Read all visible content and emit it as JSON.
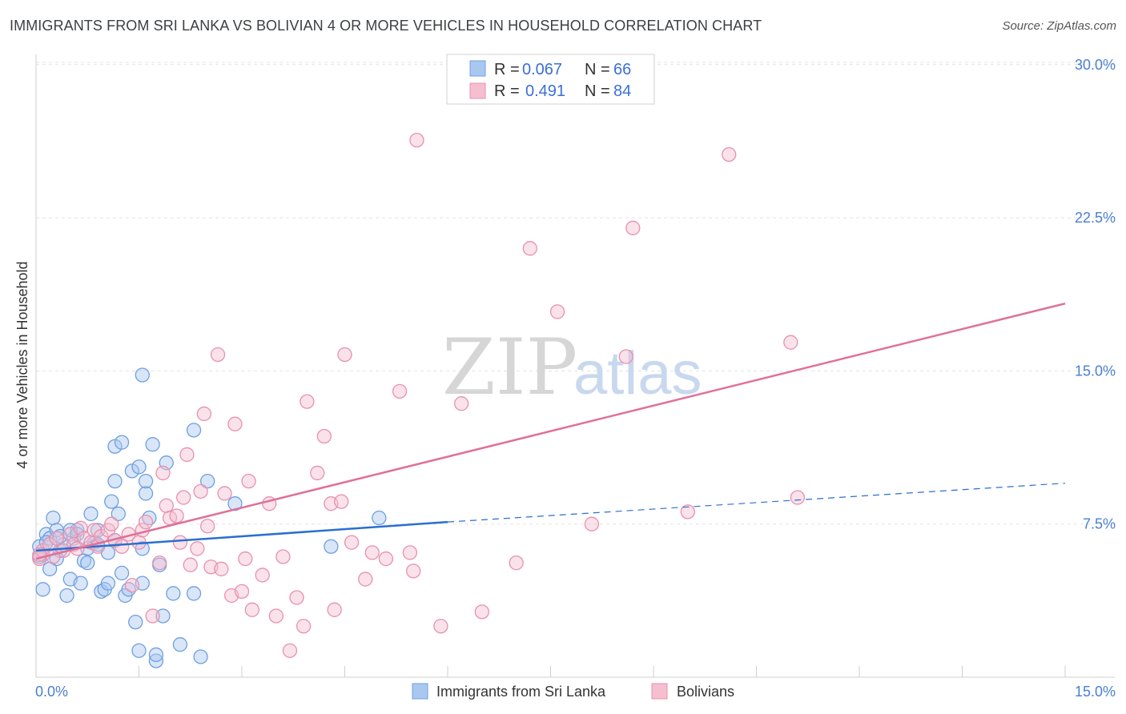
{
  "header": {
    "title": "IMMIGRANTS FROM SRI LANKA VS BOLIVIAN 4 OR MORE VEHICLES IN HOUSEHOLD CORRELATION CHART",
    "source": "Source: ZipAtlas.com"
  },
  "watermark": {
    "zip": "ZIP",
    "atlas": "atlas"
  },
  "colors": {
    "blue_fill": "#a9c8f0",
    "blue_stroke": "#6f9fe0",
    "blue_line": "#2a6fd0",
    "pink_fill": "#f5bfd0",
    "pink_stroke": "#e891ad",
    "pink_line": "#e07097",
    "axis_text": "#4a7fd1",
    "grid": "#e3e3e3"
  },
  "chart_data": {
    "type": "scatter",
    "title": "IMMIGRANTS FROM SRI LANKA VS BOLIVIAN 4 OR MORE VEHICLES IN HOUSEHOLD CORRELATION CHART",
    "xlabel": "",
    "ylabel": "4 or more Vehicles in Household",
    "xlim": [
      0,
      15
    ],
    "ylim": [
      0,
      30.5
    ],
    "x_tick_labels": [
      "0.0%",
      "15.0%"
    ],
    "y_ticks": [
      7.5,
      15.0,
      22.5,
      30.0
    ],
    "y_tick_labels": [
      "7.5%",
      "15.0%",
      "22.5%",
      "30.0%"
    ],
    "legend_stats": [
      {
        "r_label": "R =",
        "r_value": "0.067",
        "n_label": "N =",
        "n_value": "66"
      },
      {
        "r_label": "R =",
        "r_value": "0.491",
        "n_label": "N =",
        "n_value": "84"
      }
    ],
    "series": [
      {
        "name": "Immigrants from Sri Lanka",
        "color": "#a9c8f0",
        "trend": {
          "x0": 0,
          "y0": 6.2,
          "x1": 6.0,
          "y1": 7.6,
          "dash_x1": 15,
          "dash_y1": 9.5
        },
        "points": [
          [
            0.05,
            6.4
          ],
          [
            0.1,
            6.0
          ],
          [
            0.15,
            7.0
          ],
          [
            0.2,
            6.8
          ],
          [
            0.25,
            7.8
          ],
          [
            0.3,
            7.2
          ],
          [
            0.35,
            6.2
          ],
          [
            0.4,
            6.5
          ],
          [
            0.45,
            4.0
          ],
          [
            0.5,
            4.8
          ],
          [
            0.55,
            6.8
          ],
          [
            0.6,
            7.2
          ],
          [
            0.65,
            4.6
          ],
          [
            0.7,
            5.7
          ],
          [
            0.75,
            5.6
          ],
          [
            0.8,
            8.0
          ],
          [
            0.85,
            6.6
          ],
          [
            0.9,
            6.5
          ],
          [
            0.95,
            4.2
          ],
          [
            1.0,
            4.3
          ],
          [
            1.05,
            6.1
          ],
          [
            1.1,
            8.6
          ],
          [
            1.15,
            9.6
          ],
          [
            1.2,
            8.0
          ],
          [
            1.25,
            5.1
          ],
          [
            1.3,
            4.0
          ],
          [
            1.35,
            4.3
          ],
          [
            1.4,
            10.1
          ],
          [
            1.45,
            2.7
          ],
          [
            1.5,
            1.3
          ],
          [
            1.55,
            6.3
          ],
          [
            1.6,
            9.0
          ],
          [
            1.65,
            7.8
          ],
          [
            1.7,
            11.4
          ],
          [
            1.75,
            0.8
          ],
          [
            1.8,
            5.5
          ],
          [
            1.85,
            3.0
          ],
          [
            1.9,
            10.5
          ],
          [
            2.0,
            4.1
          ],
          [
            2.1,
            1.6
          ],
          [
            2.3,
            12.1
          ],
          [
            2.3,
            4.1
          ],
          [
            1.15,
            11.3
          ],
          [
            1.5,
            10.3
          ],
          [
            1.25,
            11.5
          ],
          [
            0.5,
            7.2
          ],
          [
            0.6,
            7.0
          ],
          [
            0.3,
            5.8
          ],
          [
            0.2,
            5.3
          ],
          [
            0.1,
            4.3
          ],
          [
            0.15,
            6.6
          ],
          [
            0.35,
            6.9
          ],
          [
            0.75,
            6.3
          ],
          [
            0.9,
            7.2
          ],
          [
            1.05,
            4.6
          ],
          [
            1.15,
            6.7
          ],
          [
            1.6,
            9.6
          ],
          [
            2.4,
            1.0
          ],
          [
            2.5,
            9.6
          ],
          [
            2.9,
            8.5
          ],
          [
            4.3,
            6.4
          ],
          [
            5.0,
            7.8
          ],
          [
            1.55,
            4.6
          ],
          [
            1.75,
            1.1
          ],
          [
            0.05,
            5.9
          ],
          [
            1.55,
            14.8
          ]
        ]
      },
      {
        "name": "Bolivians",
        "color": "#f5bfd0",
        "trend": {
          "x0": 0,
          "y0": 5.8,
          "x1": 15,
          "y1": 18.3
        },
        "points": [
          [
            0.05,
            5.8
          ],
          [
            0.1,
            6.2
          ],
          [
            0.2,
            6.5
          ],
          [
            0.3,
            6.8
          ],
          [
            0.4,
            6.2
          ],
          [
            0.5,
            7.0
          ],
          [
            0.55,
            6.5
          ],
          [
            0.65,
            7.3
          ],
          [
            0.7,
            6.8
          ],
          [
            0.8,
            6.6
          ],
          [
            0.85,
            7.2
          ],
          [
            0.9,
            6.4
          ],
          [
            0.95,
            6.9
          ],
          [
            1.05,
            7.2
          ],
          [
            1.1,
            7.5
          ],
          [
            1.15,
            6.7
          ],
          [
            1.25,
            6.4
          ],
          [
            1.35,
            7.0
          ],
          [
            1.4,
            4.5
          ],
          [
            1.5,
            6.6
          ],
          [
            1.55,
            7.2
          ],
          [
            1.6,
            7.6
          ],
          [
            1.7,
            3.0
          ],
          [
            1.8,
            5.6
          ],
          [
            1.85,
            10.0
          ],
          [
            1.9,
            8.4
          ],
          [
            1.95,
            7.8
          ],
          [
            2.05,
            7.9
          ],
          [
            2.1,
            6.6
          ],
          [
            2.15,
            8.8
          ],
          [
            2.2,
            10.9
          ],
          [
            2.25,
            5.5
          ],
          [
            2.35,
            6.3
          ],
          [
            2.4,
            9.1
          ],
          [
            2.45,
            12.9
          ],
          [
            2.5,
            7.4
          ],
          [
            2.55,
            5.4
          ],
          [
            2.65,
            15.8
          ],
          [
            2.7,
            5.3
          ],
          [
            2.75,
            9.0
          ],
          [
            2.85,
            4.0
          ],
          [
            2.9,
            12.4
          ],
          [
            3.0,
            4.2
          ],
          [
            3.05,
            5.8
          ],
          [
            3.1,
            9.6
          ],
          [
            3.15,
            3.3
          ],
          [
            3.3,
            5.0
          ],
          [
            3.4,
            8.5
          ],
          [
            3.5,
            3.0
          ],
          [
            3.6,
            5.9
          ],
          [
            3.7,
            1.3
          ],
          [
            3.8,
            3.9
          ],
          [
            3.9,
            2.5
          ],
          [
            3.95,
            13.5
          ],
          [
            4.1,
            10.0
          ],
          [
            4.2,
            11.8
          ],
          [
            4.3,
            8.5
          ],
          [
            4.35,
            3.3
          ],
          [
            4.45,
            8.6
          ],
          [
            4.5,
            15.8
          ],
          [
            4.6,
            6.6
          ],
          [
            4.8,
            4.8
          ],
          [
            4.9,
            6.1
          ],
          [
            5.1,
            5.8
          ],
          [
            5.3,
            14.0
          ],
          [
            5.45,
            6.1
          ],
          [
            5.5,
            5.2
          ],
          [
            5.55,
            26.3
          ],
          [
            5.9,
            2.5
          ],
          [
            6.2,
            13.4
          ],
          [
            6.5,
            3.2
          ],
          [
            7.0,
            5.6
          ],
          [
            7.2,
            21.0
          ],
          [
            7.6,
            17.9
          ],
          [
            8.1,
            7.5
          ],
          [
            8.6,
            15.7
          ],
          [
            8.7,
            22.0
          ],
          [
            9.5,
            8.1
          ],
          [
            10.1,
            25.6
          ],
          [
            11.0,
            16.4
          ],
          [
            11.1,
            8.8
          ],
          [
            0.05,
            6.0
          ],
          [
            0.25,
            5.9
          ],
          [
            0.6,
            6.3
          ]
        ]
      }
    ]
  },
  "legend_bottom": [
    {
      "label": "Immigrants from Sri Lanka"
    },
    {
      "label": "Bolivians"
    }
  ]
}
